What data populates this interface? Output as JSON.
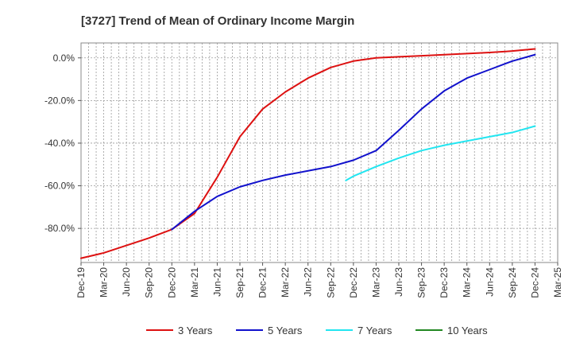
{
  "chart_data": {
    "type": "line",
    "title": "[3727]  Trend of Mean of Ordinary Income Margin",
    "xlabel": "",
    "ylabel": "",
    "x_ticks": [
      "Dec-19",
      "Mar-20",
      "Jun-20",
      "Sep-20",
      "Dec-20",
      "Mar-21",
      "Jun-21",
      "Sep-21",
      "Dec-21",
      "Mar-22",
      "Jun-22",
      "Sep-22",
      "Dec-22",
      "Mar-23",
      "Jun-23",
      "Sep-23",
      "Dec-23",
      "Mar-24",
      "Jun-24",
      "Sep-24",
      "Dec-24",
      "Mar-25"
    ],
    "y_ticks": [
      0,
      -20,
      -40,
      -60,
      -80
    ],
    "y_tick_labels": [
      "0.0%",
      "-20.0%",
      "-40.0%",
      "-60.0%",
      "-80.0%"
    ],
    "ylim": [
      -96,
      7
    ],
    "grid": true,
    "legend_position": "bottom",
    "series": [
      {
        "name": "3 Years",
        "color": "#dd1111",
        "points": [
          [
            "Dec-19",
            -94.0
          ],
          [
            "Mar-20",
            -91.5
          ],
          [
            "Jun-20",
            -88.0
          ],
          [
            "Sep-20",
            -84.5
          ],
          [
            "Dec-20",
            -80.5
          ],
          [
            "Mar-21",
            -73.0
          ],
          [
            "Jun-21",
            -56.0
          ],
          [
            "Sep-21",
            -37.0
          ],
          [
            "Dec-21",
            -24.0
          ],
          [
            "Mar-22",
            -16.0
          ],
          [
            "Jun-22",
            -9.5
          ],
          [
            "Sep-22",
            -4.5
          ],
          [
            "Dec-22",
            -1.5
          ],
          [
            "Mar-23",
            0.0
          ],
          [
            "Jun-23",
            0.5
          ],
          [
            "Sep-23",
            1.0
          ],
          [
            "Dec-23",
            1.5
          ],
          [
            "Mar-24",
            2.0
          ],
          [
            "Jun-24",
            2.5
          ],
          [
            "Sep-24",
            3.2
          ],
          [
            "Dec-24",
            4.2
          ]
        ]
      },
      {
        "name": "5 Years",
        "color": "#1111cc",
        "points": [
          [
            "Dec-20",
            -80.5
          ],
          [
            "Mar-21",
            -72.0
          ],
          [
            "Jun-21",
            -65.0
          ],
          [
            "Sep-21",
            -60.5
          ],
          [
            "Dec-21",
            -57.5
          ],
          [
            "Mar-22",
            -55.0
          ],
          [
            "Jun-22",
            -53.0
          ],
          [
            "Sep-22",
            -51.0
          ],
          [
            "Dec-22",
            -48.0
          ],
          [
            "Mar-23",
            -43.5
          ],
          [
            "Jun-23",
            -34.0
          ],
          [
            "Sep-23",
            -24.0
          ],
          [
            "Dec-23",
            -15.5
          ],
          [
            "Mar-24",
            -9.5
          ],
          [
            "Jun-24",
            -5.5
          ],
          [
            "Sep-24",
            -1.5
          ],
          [
            "Dec-24",
            1.5
          ]
        ]
      },
      {
        "name": "7 Years",
        "color": "#22e5f0",
        "points": [
          [
            "Nov-22",
            -57.5
          ],
          [
            "Dec-22",
            -55.5
          ],
          [
            "Mar-23",
            -51.0
          ],
          [
            "Jun-23",
            -47.0
          ],
          [
            "Sep-23",
            -43.5
          ],
          [
            "Dec-23",
            -41.0
          ],
          [
            "Mar-24",
            -39.0
          ],
          [
            "Jun-24",
            -37.0
          ],
          [
            "Sep-24",
            -35.0
          ],
          [
            "Dec-24",
            -32.0
          ]
        ]
      },
      {
        "name": "10 Years",
        "color": "#228822",
        "points": []
      }
    ]
  }
}
